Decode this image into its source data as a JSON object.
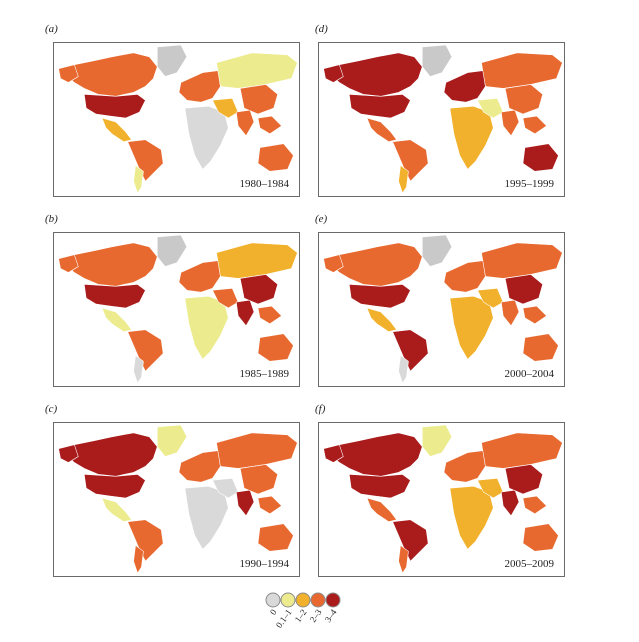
{
  "colors": {
    "c0": "#d9d9d9",
    "c1": "#eceb8e",
    "c2": "#f2b12c",
    "c3": "#e8692f",
    "c4": "#aa1b1c",
    "grey": "#c9c9c9"
  },
  "panels": [
    {
      "label": "(a)",
      "period": "1980–1984",
      "fills": {
        "na": "c3",
        "usa": "c4",
        "greenland": "grey",
        "central": "c2",
        "sa": "c3",
        "sa_south": "c1",
        "europe": "c3",
        "russia": "c1",
        "africa": "c0",
        "mideast": "c2",
        "india": "c3",
        "china": "c3",
        "sea": "c3",
        "australia": "c3"
      }
    },
    {
      "label": "(b)",
      "period": "1985–1989",
      "fills": {
        "na": "c3",
        "usa": "c4",
        "greenland": "grey",
        "central": "c1",
        "sa": "c3",
        "sa_south": "c0",
        "europe": "c3",
        "russia": "c2",
        "africa": "c1",
        "mideast": "c3",
        "india": "c4",
        "china": "c4",
        "sea": "c3",
        "australia": "c3"
      }
    },
    {
      "label": "(c)",
      "period": "1990–1994",
      "fills": {
        "na": "c4",
        "usa": "c4",
        "greenland": "c1",
        "central": "c1",
        "sa": "c3",
        "sa_south": "c3",
        "europe": "c3",
        "russia": "c3",
        "africa": "c0",
        "mideast": "c0",
        "india": "c4",
        "china": "c3",
        "sea": "c3",
        "australia": "c3"
      }
    },
    {
      "label": "(d)",
      "period": "1995–1999",
      "fills": {
        "na": "c4",
        "usa": "c4",
        "greenland": "grey",
        "central": "c3",
        "sa": "c3",
        "sa_south": "c2",
        "europe": "c4",
        "russia": "c3",
        "africa": "c2",
        "mideast": "c1",
        "india": "c3",
        "china": "c3",
        "sea": "c3",
        "australia": "c4"
      }
    },
    {
      "label": "(e)",
      "period": "2000–2004",
      "fills": {
        "na": "c3",
        "usa": "c4",
        "greenland": "grey",
        "central": "c2",
        "sa": "c4",
        "sa_south": "c0",
        "europe": "c3",
        "russia": "c3",
        "africa": "c2",
        "mideast": "c2",
        "india": "c3",
        "china": "c4",
        "sea": "c3",
        "australia": "c3"
      }
    },
    {
      "label": "(f)",
      "period": "2005–2009",
      "fills": {
        "na": "c4",
        "usa": "c4",
        "greenland": "c1",
        "central": "c3",
        "sa": "c4",
        "sa_south": "c3",
        "europe": "c3",
        "russia": "c3",
        "africa": "c2",
        "mideast": "c2",
        "india": "c4",
        "china": "c4",
        "sea": "c3",
        "australia": "c3"
      }
    }
  ],
  "legend": {
    "items": [
      {
        "label": "0",
        "color": "c0"
      },
      {
        "label": "0.1–1",
        "color": "c1"
      },
      {
        "label": "1–2",
        "color": "c2"
      },
      {
        "label": "2–3",
        "color": "c3"
      },
      {
        "label": "3–4",
        "color": "c4"
      }
    ]
  }
}
